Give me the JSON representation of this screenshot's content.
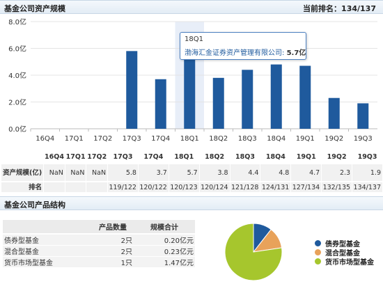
{
  "header": {
    "title": "基金公司资产规模",
    "rank_label": "当前排名：",
    "rank_value": "134/137"
  },
  "chart_data": {
    "type": "bar",
    "categories": [
      "16Q4",
      "17Q1",
      "17Q2",
      "17Q3",
      "17Q4",
      "18Q1",
      "18Q2",
      "18Q3",
      "18Q4",
      "19Q1",
      "19Q2",
      "19Q3"
    ],
    "values": [
      null,
      null,
      null,
      5.8,
      3.7,
      5.7,
      3.8,
      4.4,
      4.8,
      4.7,
      2.3,
      1.9
    ],
    "yticks": [
      "0.0亿",
      "2.0亿",
      "4.0亿",
      "6.0亿",
      "8.0亿"
    ],
    "ylim": [
      0,
      8
    ],
    "bar_color": "#1f5a9d",
    "highlight_index": 5,
    "highlight_color": "#e8eef8"
  },
  "tooltip": {
    "label": "18Q1",
    "series": "渤海汇金证券资产管理有限公司:",
    "value": "5.7亿"
  },
  "table": {
    "row_labels": {
      "scale": "资产规模(亿)",
      "rank": "排名"
    },
    "headers": [
      "16Q4",
      "17Q1",
      "17Q2",
      "17Q3",
      "17Q4",
      "18Q1",
      "18Q2",
      "18Q3",
      "18Q4",
      "19Q1",
      "19Q2",
      "19Q3"
    ],
    "values": [
      "NaN",
      "NaN",
      "NaN",
      "5.8",
      "3.7",
      "5.7",
      "3.8",
      "4.4",
      "4.8",
      "4.7",
      "2.3",
      "1.9"
    ],
    "ranks": [
      "",
      "",
      "",
      "119/122",
      "120/122",
      "120/123",
      "120/124",
      "121/128",
      "124/131",
      "127/134",
      "132/135",
      "134/137"
    ]
  },
  "products": {
    "title": "基金公司产品结构",
    "col_count": "产品数量",
    "col_scale": "规模合计",
    "rows": [
      {
        "name": "债券型基金",
        "count": "2只",
        "scale": "0.20亿元"
      },
      {
        "name": "混合型基金",
        "count": "2只",
        "scale": "0.23亿元"
      },
      {
        "name": "货币市场型基金",
        "count": "1只",
        "scale": "1.47亿元"
      }
    ]
  },
  "pie_data": {
    "type": "pie",
    "labels": [
      "债券型基金",
      "混合型基金",
      "货币市场型基金"
    ],
    "values": [
      0.2,
      0.23,
      1.47
    ],
    "colors": [
      "#1f5a9d",
      "#e8a25a",
      "#a6c62d"
    ]
  }
}
